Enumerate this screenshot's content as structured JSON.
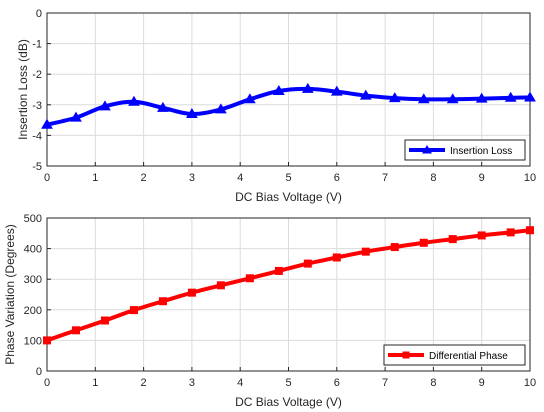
{
  "chart_data": [
    {
      "type": "line",
      "xlabel": "DC Bias Voltage (V)",
      "ylabel": "Insertion Loss (dB)",
      "xlim": [
        0,
        10
      ],
      "ylim": [
        -5,
        0
      ],
      "xticks": [
        "0",
        "1",
        "2",
        "3",
        "4",
        "5",
        "6",
        "7",
        "8",
        "9",
        "10"
      ],
      "yticks": [
        "0",
        "-1",
        "-2",
        "-3",
        "-4",
        "-5"
      ],
      "grid": true,
      "legend_position": "bottom-right",
      "series": [
        {
          "name": "Insertion Loss",
          "color": "#0000ff",
          "marker": "triangle",
          "x": [
            0,
            0.6,
            1.2,
            1.8,
            2.4,
            3.0,
            3.6,
            4.2,
            4.8,
            5.4,
            6.0,
            6.6,
            7.2,
            7.8,
            8.4,
            9.0,
            9.6,
            10
          ],
          "y": [
            -3.65,
            -3.42,
            -3.05,
            -2.9,
            -3.1,
            -3.3,
            -3.15,
            -2.82,
            -2.55,
            -2.48,
            -2.57,
            -2.7,
            -2.78,
            -2.82,
            -2.82,
            -2.8,
            -2.77,
            -2.76
          ]
        }
      ]
    },
    {
      "type": "line",
      "xlabel": "DC Bias Voltage (V)",
      "ylabel": "Phase Variation (Degrees)",
      "xlim": [
        0,
        10
      ],
      "ylim": [
        0,
        500
      ],
      "xticks": [
        "0",
        "1",
        "2",
        "3",
        "4",
        "5",
        "6",
        "7",
        "8",
        "9",
        "10"
      ],
      "yticks": [
        "500",
        "400",
        "300",
        "200",
        "100",
        "0"
      ],
      "grid": true,
      "legend_position": "bottom-right",
      "series": [
        {
          "name": "Differential Phase",
          "color": "#ff0000",
          "marker": "square",
          "x": [
            0,
            0.6,
            1.2,
            1.8,
            2.4,
            3.0,
            3.6,
            4.2,
            4.8,
            5.4,
            6.0,
            6.6,
            7.2,
            7.8,
            8.4,
            9.0,
            9.6,
            10
          ],
          "y": [
            100,
            133,
            165,
            199,
            228,
            256,
            280,
            303,
            327,
            351,
            371,
            390,
            405,
            419,
            431,
            443,
            453,
            460
          ]
        }
      ]
    }
  ]
}
